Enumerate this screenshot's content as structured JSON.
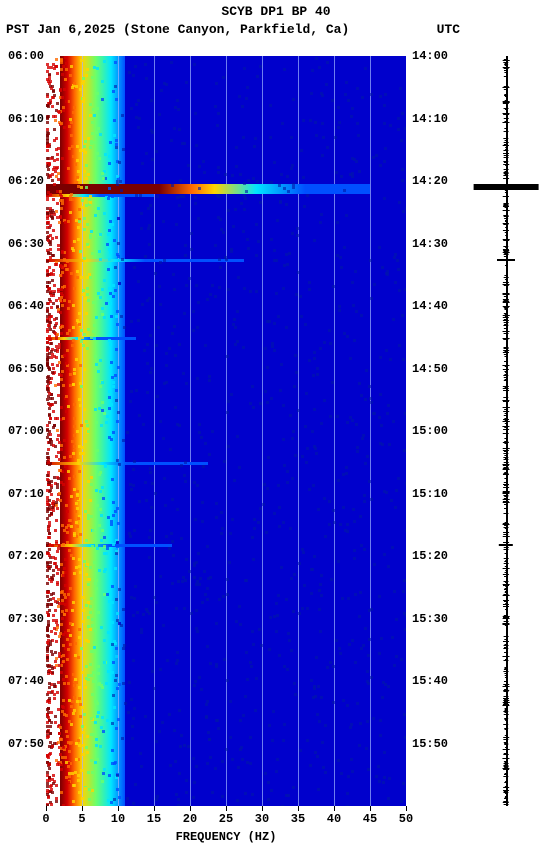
{
  "header": {
    "title": "SCYB DP1 BP 40",
    "pst_date": "PST  Jan 6,2025  (Stone Canyon, Parkfield, Ca)",
    "utc": "UTC"
  },
  "spectrogram": {
    "type": "spectrogram",
    "xlabel": "FREQUENCY (HZ)",
    "xlim": [
      0,
      50
    ],
    "xticks": [
      0,
      5,
      10,
      15,
      20,
      25,
      30,
      35,
      40,
      45,
      50
    ],
    "y_pst_ticks": [
      "06:00",
      "06:10",
      "06:20",
      "06:30",
      "06:40",
      "06:50",
      "07:00",
      "07:10",
      "07:20",
      "07:30",
      "07:40",
      "07:50"
    ],
    "y_utc_ticks": [
      "14:00",
      "14:10",
      "14:20",
      "14:30",
      "14:40",
      "14:50",
      "15:00",
      "15:10",
      "15:20",
      "15:30",
      "15:40",
      "15:50"
    ],
    "time_span_min": 120,
    "background_color": "#0000cc",
    "grid_color": "#9db4ff",
    "colormap_stops": [
      "#7a0000",
      "#d40000",
      "#ff6a00",
      "#ffd400",
      "#6aff6a",
      "#00e5ff",
      "#0050ff",
      "#0000cc"
    ],
    "lowfreq_band_width_pct": 22,
    "events": [
      {
        "t_min": 20.5,
        "width_pct": 90,
        "class": "major"
      },
      {
        "t_min": 22.0,
        "width_pct": 30,
        "class": "minor"
      },
      {
        "t_min": 32.5,
        "width_pct": 55,
        "class": "minor"
      },
      {
        "t_min": 45.0,
        "width_pct": 25,
        "class": "minor"
      },
      {
        "t_min": 65.0,
        "width_pct": 45,
        "class": "minor"
      },
      {
        "t_min": 78.0,
        "width_pct": 35,
        "class": "minor"
      }
    ]
  },
  "waveform": {
    "trace_color": "#000000",
    "spikes": [
      {
        "t_min": 20.5,
        "amp_pct": 90
      },
      {
        "t_min": 32.5,
        "amp_pct": 25
      },
      {
        "t_min": 78.0,
        "amp_pct": 20
      }
    ],
    "noise_amp_pct": 8,
    "noise_density": 450
  },
  "fonts": {
    "family": "Courier New",
    "title_size_pt": 13,
    "tick_size_pt": 12
  }
}
